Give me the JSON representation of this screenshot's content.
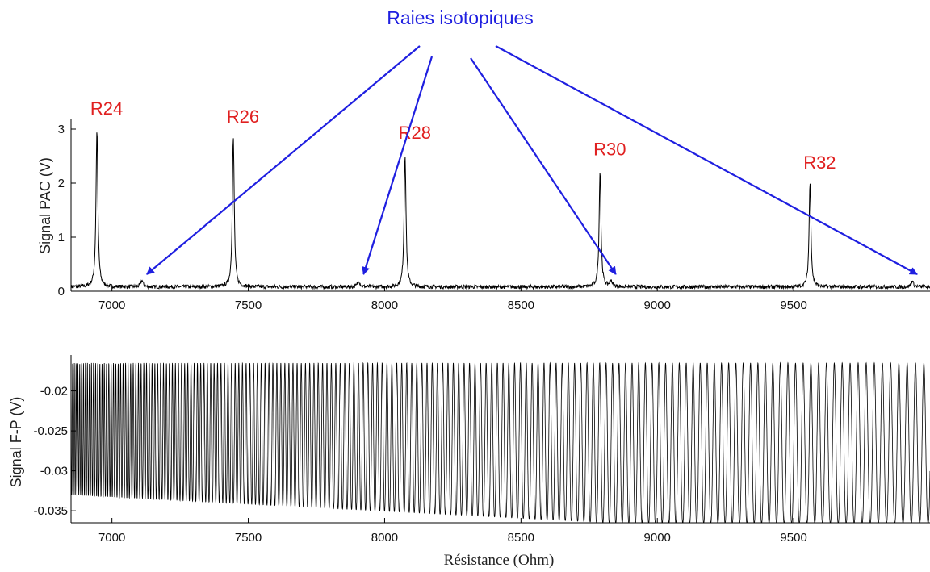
{
  "annotation": {
    "text": "Raies isotopiques",
    "color": "#1f1fe0"
  },
  "peak_label_color": "#e02020",
  "line_color": "#000000",
  "chart_data": [
    {
      "type": "line",
      "ylabel": "Signal PAC (V)",
      "xlim": [
        6850,
        10000
      ],
      "ylim": [
        0,
        3.15
      ],
      "xticks": [
        7000,
        7500,
        8000,
        8500,
        9000,
        9500
      ],
      "yticks": [
        0,
        1,
        2,
        3
      ],
      "baseline": 0.08,
      "peaks": [
        {
          "label": "R24",
          "x": 6945,
          "height": 3.0
        },
        {
          "label": "R26",
          "x": 7445,
          "height": 2.85
        },
        {
          "label": "R28",
          "x": 8075,
          "height": 2.55
        },
        {
          "label": "R30",
          "x": 8790,
          "height": 2.25
        },
        {
          "label": "R32",
          "x": 9560,
          "height": 2.0
        }
      ],
      "isotopic_lines": [
        {
          "x": 7110,
          "height": 0.2
        },
        {
          "x": 7905,
          "height": 0.2
        },
        {
          "x": 8830,
          "height": 0.2
        },
        {
          "x": 9935,
          "height": 0.2
        }
      ]
    },
    {
      "type": "line",
      "ylabel": "Signal F-P (V)",
      "xlabel": "Résistance (Ohm)",
      "xlim": [
        6850,
        10000
      ],
      "ylim": [
        -0.0365,
        -0.0155
      ],
      "xticks": [
        7000,
        7500,
        8000,
        8500,
        9000,
        9500
      ],
      "yticks": [
        -0.02,
        -0.025,
        -0.03,
        -0.035
      ],
      "signal_max": -0.0165,
      "signal_min_start": -0.033,
      "signal_min_end": -0.0365,
      "fringe_period_start": 6,
      "fringe_period_end": 31
    }
  ]
}
